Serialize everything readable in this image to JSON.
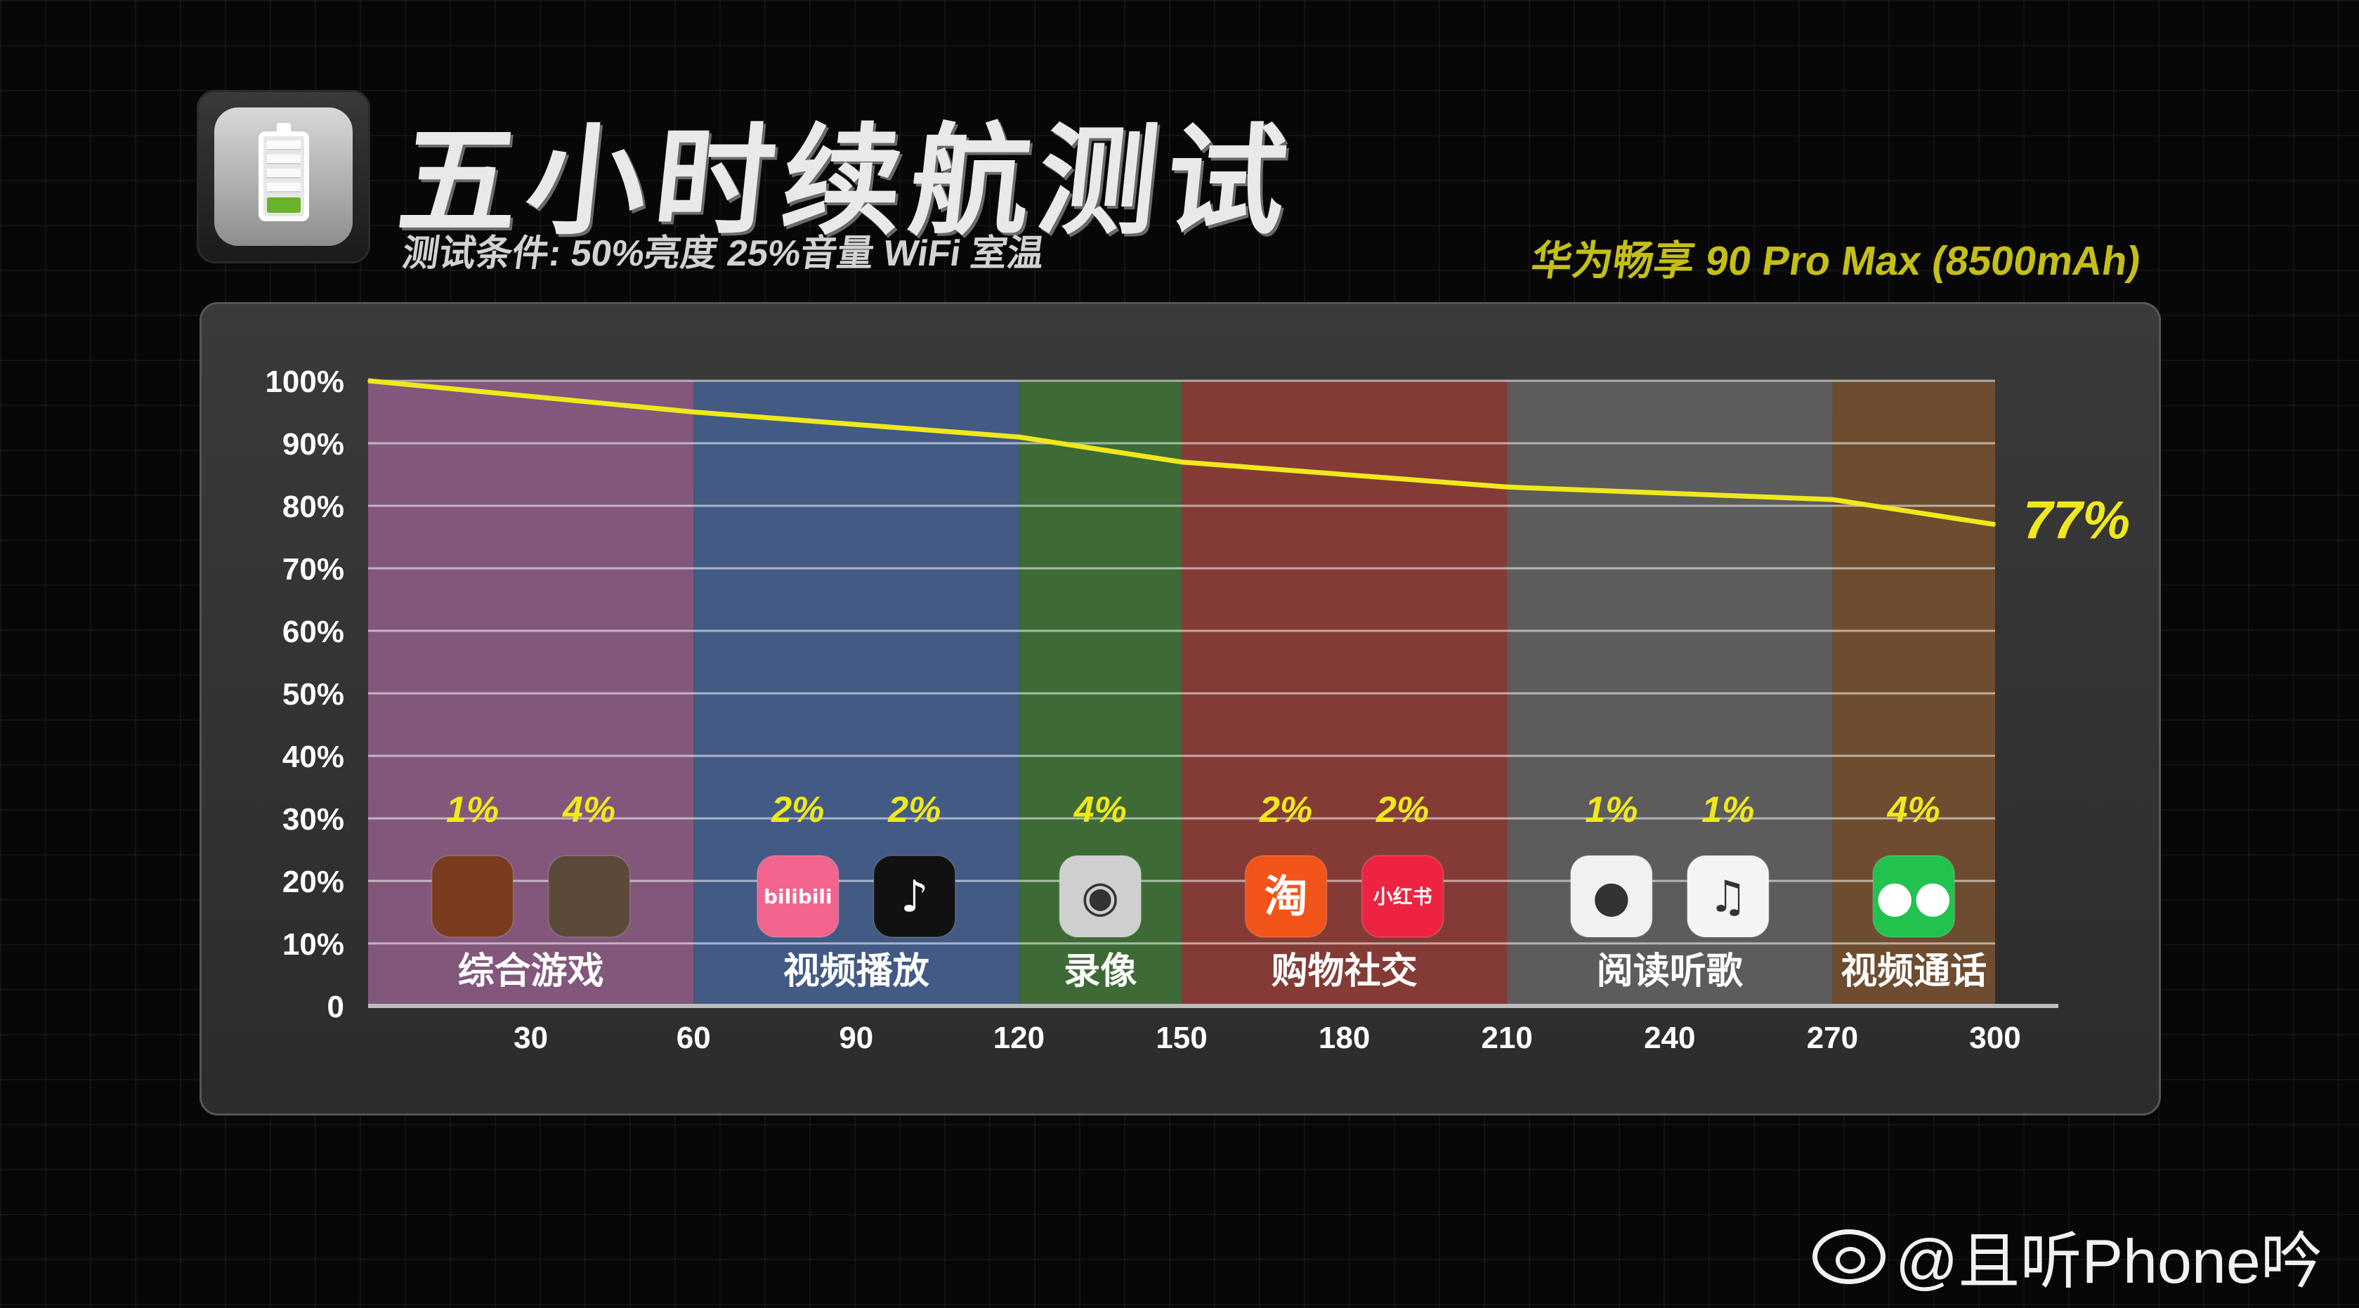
{
  "header": {
    "title": "五小时续航测试",
    "subtitle": "测试条件: 50%亮度 25%音量 WiFi 室温",
    "device": "华为畅享 90 Pro Max (8500mAh)",
    "icon": "battery-icon"
  },
  "watermark": {
    "text": "@且听Phone吟",
    "icon": "weibo-icon"
  },
  "chart_data": {
    "type": "line",
    "title": "",
    "xlabel": "",
    "ylabel": "",
    "xlim": [
      0,
      300
    ],
    "ylim": [
      0,
      100
    ],
    "x_ticks": [
      30,
      60,
      90,
      120,
      150,
      180,
      210,
      240,
      270,
      300
    ],
    "y_ticks": [
      "0",
      "10%",
      "20%",
      "30%",
      "40%",
      "50%",
      "60%",
      "70%",
      "80%",
      "90%",
      "100%"
    ],
    "series": [
      {
        "color": "#f0e81c",
        "x": [
          0,
          60,
          120,
          150,
          210,
          270,
          300
        ],
        "y": [
          100,
          95,
          91,
          87,
          83,
          81,
          77
        ]
      }
    ],
    "end_label": "77%",
    "grid": true,
    "segments": [
      {
        "label": "综合游戏",
        "start": 0,
        "end": 60,
        "color": "#82577b",
        "apps": [
          {
            "pct": "1%",
            "icon": "honor-of-kings-icon",
            "bg": "#7a3b1e"
          },
          {
            "pct": "4%",
            "icon": "pubg-icon",
            "bg": "#5b4a3a"
          }
        ]
      },
      {
        "label": "视频播放",
        "start": 60,
        "end": 120,
        "color": "#425a84",
        "apps": [
          {
            "pct": "2%",
            "icon": "bilibili-icon",
            "bg": "#f0648e",
            "glyph": "bilibili"
          },
          {
            "pct": "2%",
            "icon": "douyin-icon",
            "bg": "#111111",
            "glyph": "♪"
          }
        ]
      },
      {
        "label": "录像",
        "start": 120,
        "end": 150,
        "color": "#3d6a35",
        "apps": [
          {
            "pct": "4%",
            "icon": "camera-icon",
            "bg": "#cfcfcf",
            "glyph": "◉"
          }
        ]
      },
      {
        "label": "购物社交",
        "start": 150,
        "end": 210,
        "color": "#843b36",
        "apps": [
          {
            "pct": "2%",
            "icon": "taobao-icon",
            "bg": "#f3541a",
            "glyph": "淘"
          },
          {
            "pct": "2%",
            "icon": "xiaohongshu-icon",
            "bg": "#ee2341",
            "glyph": "小红书"
          }
        ]
      },
      {
        "label": "阅读听歌",
        "start": 210,
        "end": 270,
        "color": "#5c5c5c",
        "apps": [
          {
            "pct": "1%",
            "icon": "tomato-novel-icon",
            "bg": "#f1f1f1",
            "glyph": "●"
          },
          {
            "pct": "1%",
            "icon": "qq-music-icon",
            "bg": "#f4f4f4",
            "glyph": "♫"
          }
        ]
      },
      {
        "label": "视频通话",
        "start": 270,
        "end": 300,
        "color": "#6d4c30",
        "apps": [
          {
            "pct": "4%",
            "icon": "wechat-icon",
            "bg": "#22c24e",
            "glyph": "●●"
          }
        ]
      }
    ]
  }
}
